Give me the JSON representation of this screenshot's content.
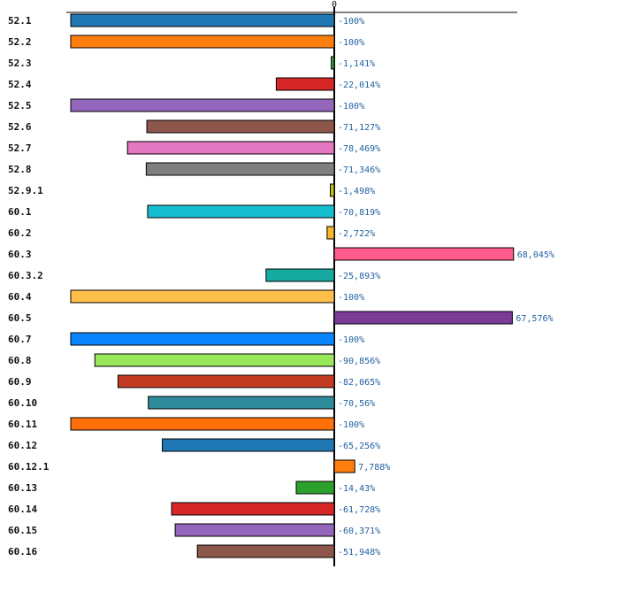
{
  "chart_data": {
    "type": "bar",
    "orientation": "horizontal",
    "title": "",
    "xlabel": "",
    "ylabel": "",
    "xlim": [
      -100,
      70
    ],
    "grid": false,
    "zero_tick_label": "0",
    "value_suffix": "%",
    "categories": [
      "52.1",
      "52.2",
      "52.3",
      "52.4",
      "52.5",
      "52.6",
      "52.7",
      "52.8",
      "52.9.1",
      "60.1",
      "60.2",
      "60.3",
      "60.3.2",
      "60.4",
      "60.5",
      "60.7",
      "60.8",
      "60.9",
      "60.10",
      "60.11",
      "60.12",
      "60.12.1",
      "60.13",
      "60.14",
      "60.15",
      "60.16"
    ],
    "values": [
      -100,
      -100,
      -1.141,
      -22.014,
      -100,
      -71.127,
      -78.469,
      -71.346,
      -1.498,
      -70.819,
      -2.722,
      68.045,
      -25.893,
      -100,
      67.576,
      -100,
      -90.856,
      -82.065,
      -70.56,
      -100,
      -65.256,
      7.788,
      -14.43,
      -61.728,
      -60.371,
      -51.948
    ],
    "value_labels": [
      "-100%",
      "-100%",
      "-1,141%",
      "-22,014%",
      "-100%",
      "-71,127%",
      "-78,469%",
      "-71,346%",
      "-1,498%",
      "-70,819%",
      "-2,722%",
      "68,045%",
      "-25,893%",
      "-100%",
      "67,576%",
      "-100%",
      "-90,856%",
      "-82,065%",
      "-70,56%",
      "-100%",
      "-65,256%",
      "7,788%",
      "-14,43%",
      "-61,728%",
      "-60,371%",
      "-51,948%"
    ],
    "colors": [
      "#1f77b4",
      "#ff7f0e",
      "#2ca02c",
      "#d62728",
      "#9467bd",
      "#8c564b",
      "#e377c2",
      "#7f7f7f",
      "#bcbd22",
      "#17becf",
      "#f7b52c",
      "#ff5a8c",
      "#17aaa0",
      "#ffc04a",
      "#7b3a96",
      "#0b84ff",
      "#98e85a",
      "#c23b22",
      "#2e8b9a",
      "#ff6f0a",
      "#1f77b4",
      "#ff7f0e",
      "#2ca02c",
      "#d62728",
      "#9467bd",
      "#8c564b"
    ]
  }
}
